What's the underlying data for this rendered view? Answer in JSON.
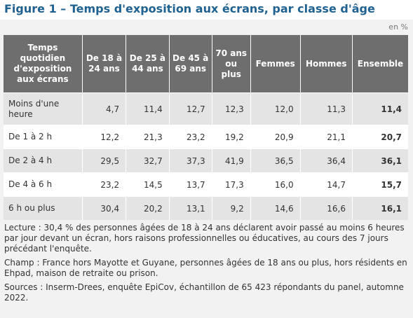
{
  "header": {
    "title": "Figure 1 – Temps d'exposition aux écrans, par classe d'âge",
    "unit": "en %"
  },
  "table": {
    "columns": [
      "Temps quotidien d'exposition aux écrans",
      "De 18 à 24 ans",
      "De 25 à 44 ans",
      "De 45 à 69 ans",
      "70 ans ou plus",
      "Femmes",
      "Hommes",
      "Ensemble"
    ],
    "rows": [
      [
        "Moins d'une heure",
        "4,7",
        "11,4",
        "12,7",
        "12,3",
        "12,0",
        "11,3",
        "11,4"
      ],
      [
        "De 1 à 2 h",
        "12,2",
        "21,3",
        "23,2",
        "19,2",
        "20,9",
        "21,1",
        "20,7"
      ],
      [
        "De 2 à 4 h",
        "29,5",
        "32,7",
        "37,3",
        "41,9",
        "36,5",
        "36,4",
        "36,1"
      ],
      [
        "De 4 à 6 h",
        "23,2",
        "14,5",
        "13,7",
        "17,3",
        "16,0",
        "14,7",
        "15,7"
      ],
      [
        "6 h ou plus",
        "30,4",
        "20,2",
        "13,1",
        "9,2",
        "14,6",
        "16,6",
        "16,1"
      ]
    ]
  },
  "notes": [
    "Lecture : 30,4 % des personnes âgées de 18 à 24 ans déclarent avoir passé au moins 6 heures par jour devant un écran, hors raisons professionnelles ou éducatives, au cours des 7 jours précédant l'enquête.",
    "Champ : France hors Mayotte et Guyane, personnes âgées de 18 ans ou plus, hors résidents en Ehpad, maison de retraite ou prison.",
    "Sources : Inserm-Drees, enquête EpiCov, échantillon de 65 423 répondants du panel, automne 2022."
  ]
}
